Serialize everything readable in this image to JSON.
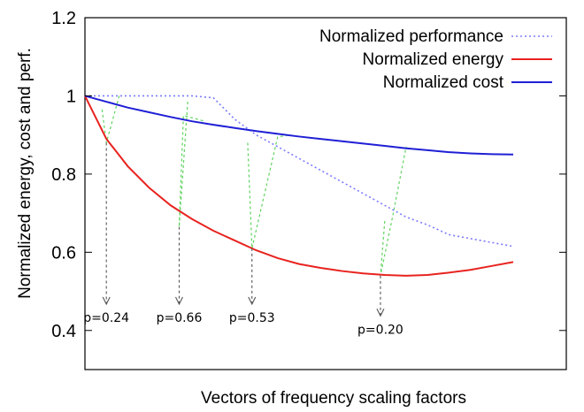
{
  "chart_data": {
    "type": "line",
    "title": "",
    "xlabel": "Vectors of frequency scaling factors",
    "ylabel": "Normalized energy, cost and perf.",
    "xlim": [
      0,
      10
    ],
    "ylim": [
      0.3,
      1.2
    ],
    "yticks": [
      "0.4",
      "0.6",
      "0.8",
      "1",
      "1.2"
    ],
    "grid": false,
    "legend_position": "top-right",
    "series": [
      {
        "name": "Normalized performance",
        "style": "dotted",
        "color": "#7b7bff",
        "x": [
          0,
          0.5,
          1,
          1.5,
          2,
          2.5,
          3,
          3.5,
          4,
          4.5,
          5,
          5.5,
          6,
          6.5,
          7,
          7.5,
          8,
          8.5,
          9,
          9.5,
          10
        ],
        "y": [
          1.0,
          1.0,
          1.0,
          1.0,
          1.0,
          1.0,
          0.995,
          0.94,
          0.9,
          0.87,
          0.84,
          0.81,
          0.78,
          0.75,
          0.72,
          0.69,
          0.67,
          0.645,
          0.635,
          0.625,
          0.615
        ]
      },
      {
        "name": "Normalized energy",
        "style": "solid",
        "color": "#e8231f",
        "x": [
          0,
          0.5,
          1,
          1.5,
          2,
          2.5,
          3,
          3.5,
          4,
          4.5,
          5,
          5.5,
          6,
          6.5,
          7,
          7.5,
          8,
          8.5,
          9,
          9.5,
          10
        ],
        "y": [
          1.0,
          0.89,
          0.82,
          0.765,
          0.72,
          0.685,
          0.655,
          0.63,
          0.605,
          0.585,
          0.57,
          0.56,
          0.552,
          0.546,
          0.542,
          0.54,
          0.542,
          0.548,
          0.555,
          0.565,
          0.575
        ]
      },
      {
        "name": "Normalized cost",
        "style": "solid",
        "color": "#1f1fd6",
        "x": [
          0,
          0.5,
          1,
          1.5,
          2,
          2.5,
          3,
          3.5,
          4,
          4.5,
          5,
          5.5,
          6,
          6.5,
          7,
          7.5,
          8,
          8.5,
          9,
          9.5,
          10
        ],
        "y": [
          1.0,
          0.985,
          0.97,
          0.958,
          0.946,
          0.935,
          0.926,
          0.918,
          0.91,
          0.903,
          0.896,
          0.89,
          0.884,
          0.878,
          0.872,
          0.866,
          0.861,
          0.856,
          0.853,
          0.851,
          0.85
        ]
      }
    ],
    "annotations": [
      {
        "label": "p=0.24",
        "x": 0.5,
        "y": 0.88,
        "label_y": 0.395
      },
      {
        "label": "p=0.66",
        "x": 2.2,
        "y": 0.665,
        "label_y": 0.395
      },
      {
        "label": "p=0.53",
        "x": 3.9,
        "y": 0.61,
        "label_y": 0.395
      },
      {
        "label": "p=0.20",
        "x": 6.9,
        "y": 0.54,
        "label_y": 0.365
      }
    ],
    "projection_lines": {
      "color": "#5fd35f",
      "style": "dashed",
      "segments": [
        [
          [
            0.4,
            0.965
          ],
          [
            0.5,
            0.88
          ],
          [
            0.8,
            1.0
          ]
        ],
        [
          [
            2.4,
            0.985
          ],
          [
            2.2,
            0.665
          ],
          [
            2.3,
            0.95
          ],
          [
            2.8,
            0.935
          ]
        ],
        [
          [
            3.8,
            0.88
          ],
          [
            3.9,
            0.61
          ],
          [
            4.5,
            0.895
          ],
          [
            4.8,
            0.9
          ]
        ],
        [
          [
            7.0,
            0.68
          ],
          [
            6.9,
            0.54
          ],
          [
            7.2,
            0.7
          ],
          [
            7.5,
            0.87
          ]
        ]
      ]
    }
  }
}
